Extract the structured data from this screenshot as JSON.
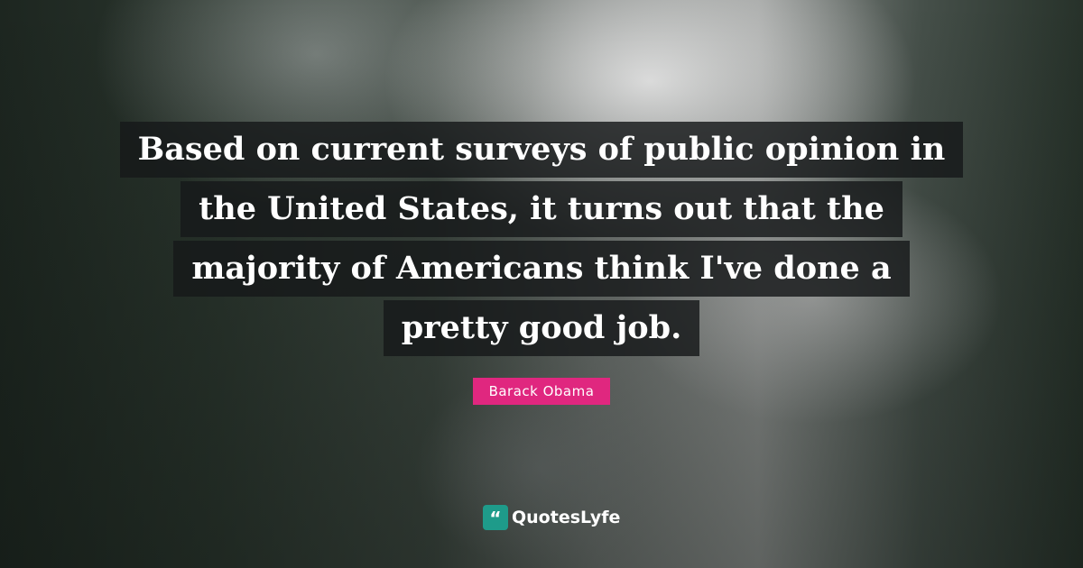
{
  "quote": {
    "lines": [
      "Based on current surveys of public opinion in",
      "the United States, it turns out that the",
      "majority of Americans think I've done a",
      "pretty good job."
    ]
  },
  "author": "Barack Obama",
  "brand": {
    "name": "QuotesLyfe",
    "icon": "quote-smile-icon",
    "icon_color": "#1e9b8a"
  },
  "colors": {
    "author_badge": "#e0277f",
    "quote_box": "#16181a"
  }
}
